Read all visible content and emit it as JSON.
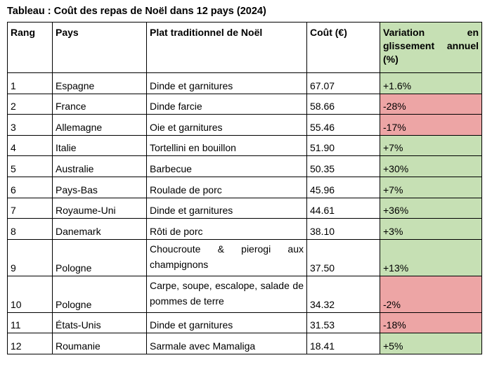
{
  "title": "Tableau : Coût des repas de Noël dans 12 pays (2024)",
  "headers": {
    "rang": "Rang",
    "pays": "Pays",
    "plat": "Plat traditionnel de Noël",
    "cout": "Coût (€)",
    "variation": "Variation en glissement annuel (%)"
  },
  "colors": {
    "positive": "#c6e0b4",
    "negative": "#eda5a5"
  },
  "rows": [
    {
      "rang": "1",
      "pays": "Espagne",
      "plat": "Dinde et garnitures",
      "cout": "67.07",
      "variation": "+1.6%"
    },
    {
      "rang": "2",
      "pays": "France",
      "plat": "Dinde farcie",
      "cout": "58.66",
      "variation": "-28%"
    },
    {
      "rang": "3",
      "pays": "Allemagne",
      "plat": "Oie et garnitures",
      "cout": "55.46",
      "variation": "-17%"
    },
    {
      "rang": "4",
      "pays": "Italie",
      "plat": "Tortellini en bouillon",
      "cout": "51.90",
      "variation": "+7%"
    },
    {
      "rang": "5",
      "pays": "Australie",
      "plat": "Barbecue",
      "cout": "50.35",
      "variation": "+30%"
    },
    {
      "rang": "6",
      "pays": "Pays-Bas",
      "plat": "Roulade de porc",
      "cout": "45.96",
      "variation": "+7%"
    },
    {
      "rang": "7",
      "pays": "Royaume-Uni",
      "plat": "Dinde et garnitures",
      "cout": "44.61",
      "variation": "+36%"
    },
    {
      "rang": "8",
      "pays": "Danemark",
      "plat": "Rôti de porc",
      "cout": "38.10",
      "variation": "+3%"
    },
    {
      "rang": "9",
      "pays": "Pologne",
      "plat_line1": "Choucroute & pierogi aux",
      "plat_line2": "champignons",
      "cout": "37.50",
      "variation": "+13%"
    },
    {
      "rang": "10",
      "pays": "Pologne",
      "plat_line1": "Carpe, soupe, escalope, salade de",
      "plat_line2": "pommes de terre",
      "cout": "34.32",
      "variation": "-2%"
    },
    {
      "rang": "11",
      "pays": "États-Unis",
      "plat": "Dinde et garnitures",
      "cout": "31.53",
      "variation": "-18%"
    },
    {
      "rang": "12",
      "pays": "Roumanie",
      "plat": "Sarmale avec Mamaliga",
      "cout": "18.41",
      "variation": "+5%"
    }
  ]
}
